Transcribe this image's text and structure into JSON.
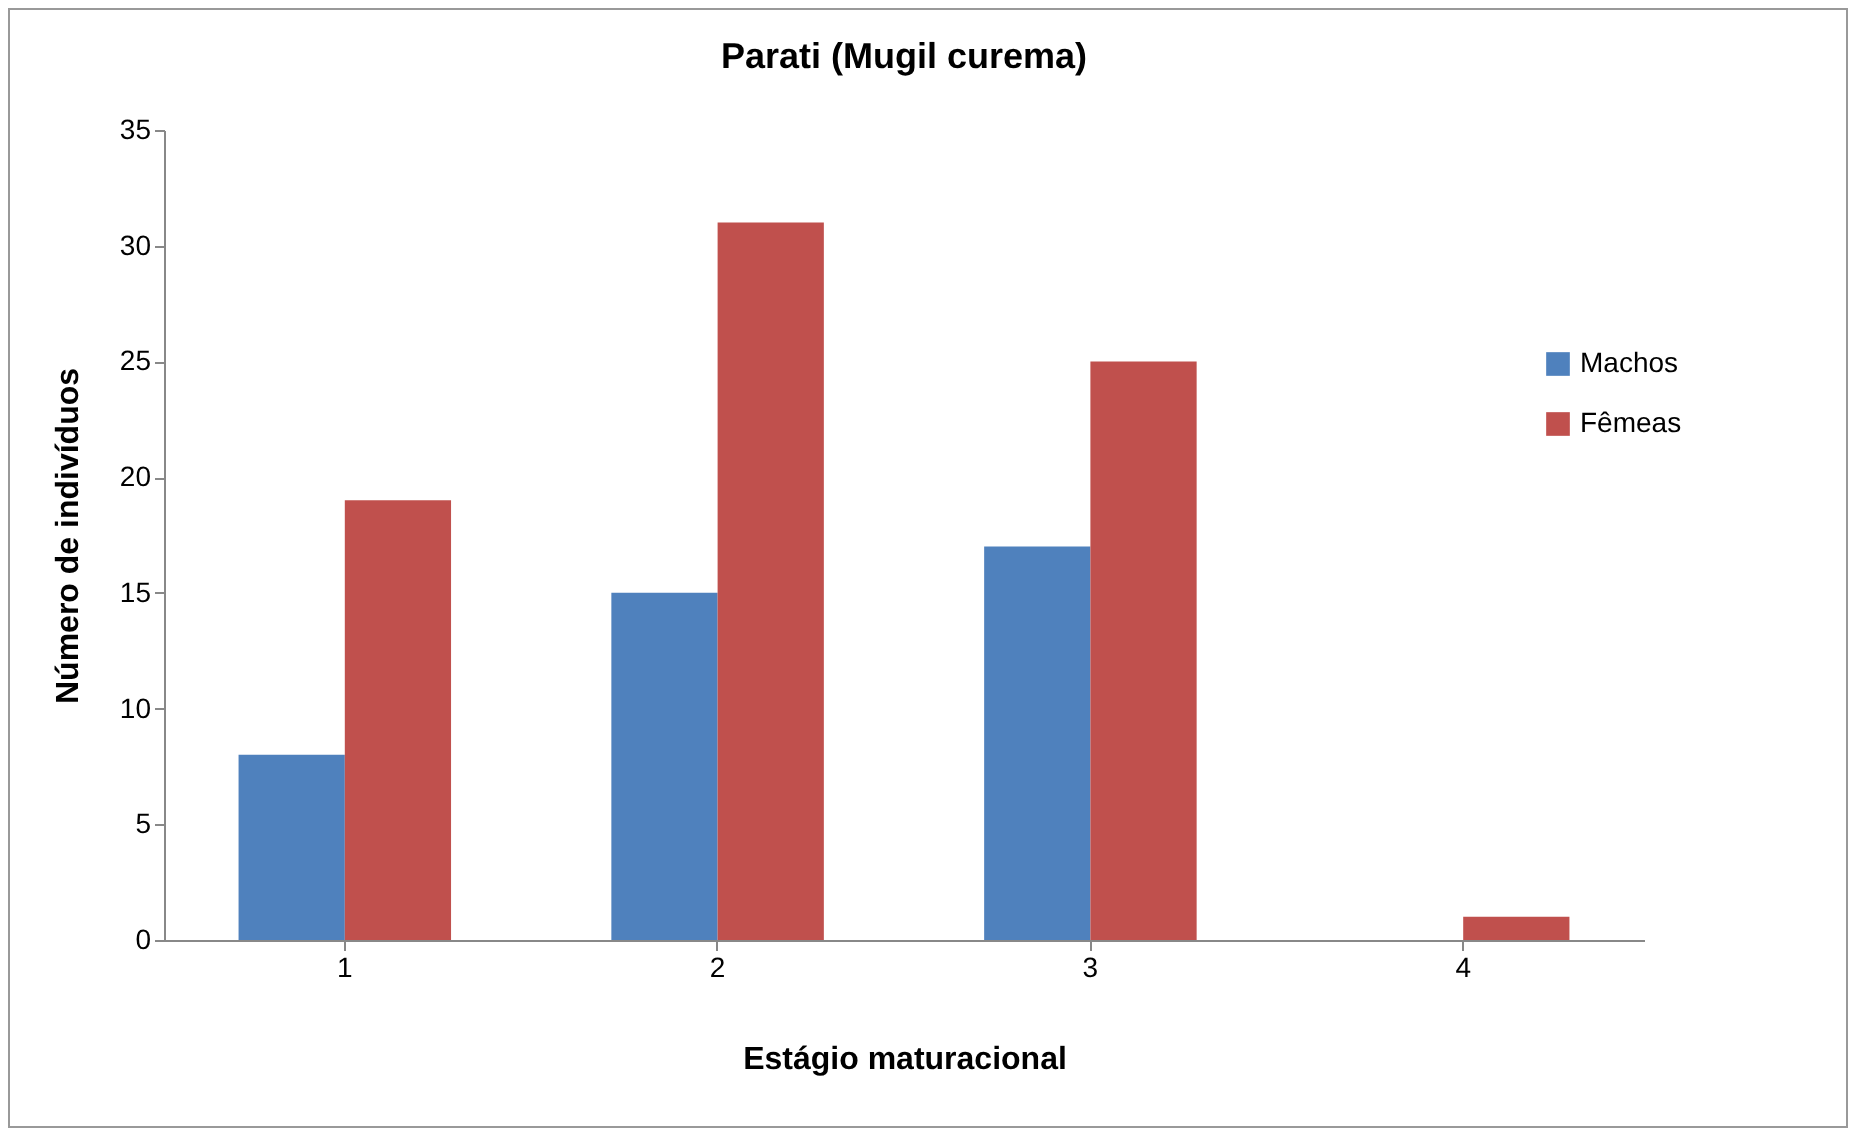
{
  "chart_data": {
    "type": "bar",
    "title": "Parati (Mugil curema)",
    "xlabel": "Estágio maturacional",
    "ylabel": "Número de indivíduos",
    "categories": [
      "1",
      "2",
      "3",
      "4"
    ],
    "series": [
      {
        "name": "Machos",
        "color": "#4f81bd",
        "values": [
          8,
          15,
          17,
          0
        ]
      },
      {
        "name": "Fêmeas",
        "color": "#c0504d",
        "values": [
          19,
          31,
          25,
          1
        ]
      }
    ],
    "ylim": [
      0,
      35
    ],
    "yticks": [
      0,
      5,
      10,
      15,
      20,
      25,
      30,
      35
    ],
    "grid": false,
    "legend": "right"
  }
}
